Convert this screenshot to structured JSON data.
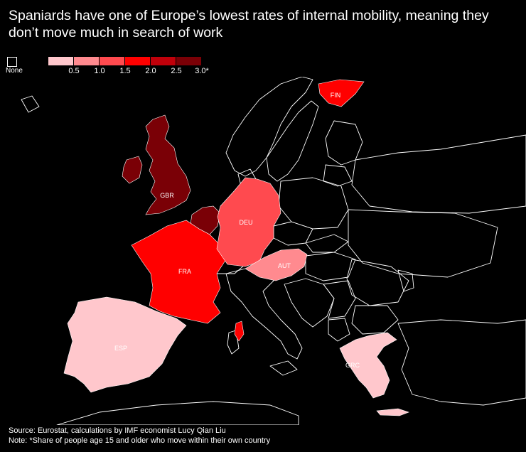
{
  "title": "Spaniards have one of Europe’s lowest rates of internal mobility, meaning they don’t move much in search of work",
  "legend": {
    "none_label": "None",
    "none_color": "#000000",
    "ticks": [
      "0.5",
      "1.0",
      "1.5",
      "2.0",
      "2.5",
      "3.0*"
    ],
    "colors": [
      "#ffc7cc",
      "#ff8a8f",
      "#ff4a4f",
      "#ff0000",
      "#c0000a",
      "#7a0006"
    ]
  },
  "countries": [
    {
      "code": "GBR",
      "label": "GBR",
      "bin": "3.0+",
      "color": "#7a0006"
    },
    {
      "code": "IRL",
      "label": "",
      "bin": "3.0+",
      "color": "#7a0006"
    },
    {
      "code": "BNL",
      "label": "",
      "bin": "3.0+",
      "color": "#7a0006"
    },
    {
      "code": "FRA",
      "label": "FRA",
      "bin": "2.0–2.5",
      "color": "#ff0000"
    },
    {
      "code": "DEU",
      "label": "DEU",
      "bin": "1.0–1.5",
      "color": "#ff4a4f"
    },
    {
      "code": "AUT",
      "label": "AUT",
      "bin": "0.5–1.0",
      "color": "#ff8a8f"
    },
    {
      "code": "ESP",
      "label": "ESP",
      "bin": "<0.5",
      "color": "#ffc7cc"
    },
    {
      "code": "GRC",
      "label": "GRC",
      "bin": "<0.5",
      "color": "#ffc7cc"
    },
    {
      "code": "FIN",
      "label": "FIN",
      "bin": "2.0–2.5",
      "color": "#ff0000"
    }
  ],
  "source": "Source: Eurostat, calculations by IMF economist Lucy Qian Liu",
  "note": "Note: *Share of people age 15 and older who move within their own country"
}
